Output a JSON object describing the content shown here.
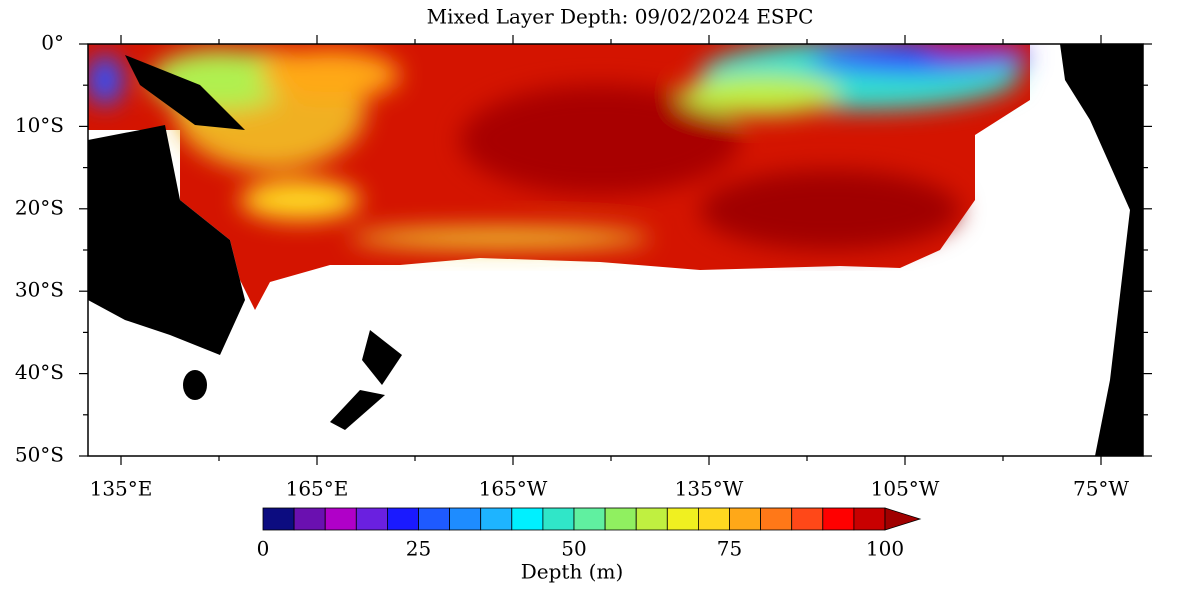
{
  "title": "Mixed Layer Depth: 09/02/2024 ESPC",
  "map": {
    "lat_labels": [
      "0°",
      "10°S",
      "20°S",
      "30°S",
      "40°S",
      "50°S"
    ],
    "lon_labels": [
      "135°E",
      "165°E",
      "165°W",
      "135°W",
      "105°W",
      "75°W"
    ]
  },
  "colorbar": {
    "label": "Depth (m)",
    "range": [
      0,
      100
    ],
    "ticks": [
      0,
      25,
      50,
      75,
      100
    ],
    "colors": [
      "#0c0c80",
      "#6a10b0",
      "#b000c8",
      "#6a20e0",
      "#1a1aff",
      "#1e5aff",
      "#1e8cff",
      "#1eb4ff",
      "#00f0ff",
      "#30e6c8",
      "#60f0a0",
      "#90f060",
      "#c0f040",
      "#f0f020",
      "#ffd820",
      "#ffa818",
      "#ff7818",
      "#ff4818",
      "#ff0000",
      "#c80000"
    ],
    "extend_color": "#a00000"
  }
}
